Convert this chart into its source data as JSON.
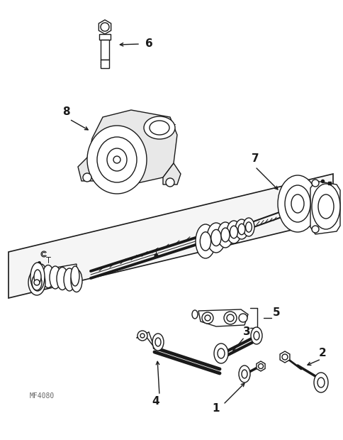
{
  "bg_color": "#ffffff",
  "lc": "#1a1a1a",
  "fig_width": 4.85,
  "fig_height": 6.2,
  "dpi": 100,
  "watermark": "MF4080",
  "lw": 1.0,
  "label_fontsize": 11
}
